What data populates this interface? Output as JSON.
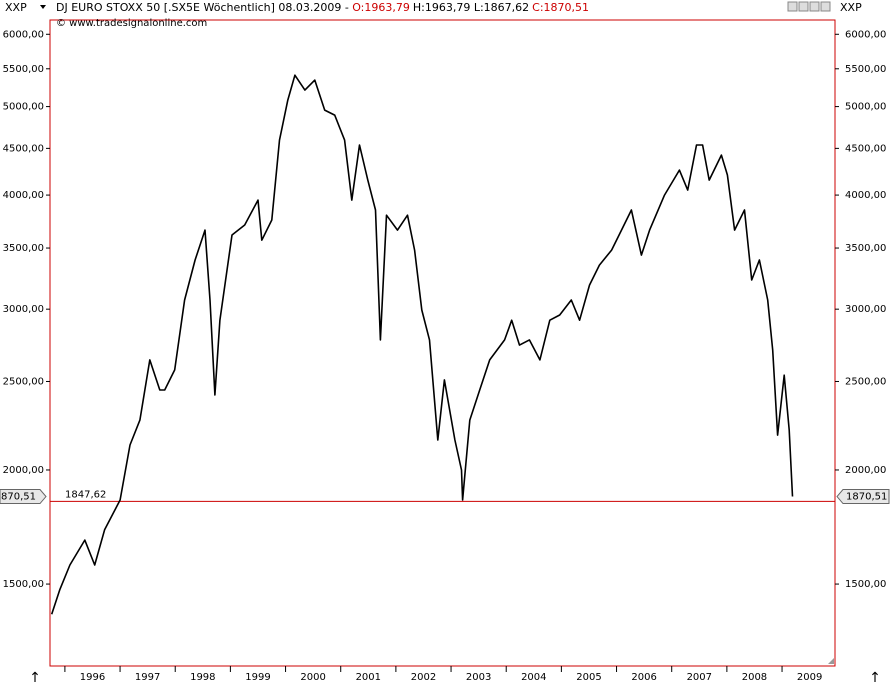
{
  "chart_data": {
    "type": "line",
    "axis_name": "XXP",
    "title": "DJ EURO STOXX 50 [.SX5E  Wöchentlich] 08.03.2009 -",
    "open_label": "O:1963,79",
    "high_low_label": "H:1963,79 L:1867,62",
    "close_label": "C:1870,51",
    "source": "© www.tradesignalonline.com",
    "x": [
      1995.76,
      1995.91,
      1996.09,
      1996.36,
      1996.54,
      1996.72,
      1997.0,
      1997.18,
      1997.36,
      1997.54,
      1997.72,
      1997.81,
      1997.99,
      1998.17,
      1998.36,
      1998.54,
      1998.63,
      1998.72,
      1998.81,
      1999.03,
      1999.26,
      1999.5,
      1999.57,
      1999.75,
      1999.89,
      2000.04,
      2000.17,
      2000.35,
      2000.53,
      2000.71,
      2000.89,
      2001.07,
      2001.2,
      2001.34,
      2001.49,
      2001.63,
      2001.72,
      2001.83,
      2002.03,
      2002.21,
      2002.34,
      2002.47,
      2002.61,
      2002.76,
      2002.88,
      2003.07,
      2003.19,
      2003.21,
      2003.34,
      2003.52,
      2003.7,
      2003.97,
      2004.1,
      2004.24,
      2004.42,
      2004.61,
      2004.79,
      2004.97,
      2005.18,
      2005.33,
      2005.51,
      2005.69,
      2005.91,
      2006.09,
      2006.27,
      2006.45,
      2006.6,
      2006.87,
      2007.14,
      2007.29,
      2007.45,
      2007.56,
      2007.68,
      2007.9,
      2008.01,
      2008.14,
      2008.32,
      2008.45,
      2008.59,
      2008.74,
      2008.83,
      2008.92,
      2009.04,
      2009.13,
      2009.19
    ],
    "values": [
      1390,
      1480,
      1574,
      1676,
      1574,
      1720,
      1854,
      2130,
      2268,
      2640,
      2447,
      2447,
      2574,
      3070,
      3396,
      3662,
      3070,
      2416,
      2918,
      3617,
      3709,
      3950,
      3570,
      3756,
      4595,
      5082,
      5412,
      5212,
      5345,
      4956,
      4894,
      4595,
      3950,
      4538,
      4154,
      3852,
      2776,
      3802,
      3662,
      3802,
      3482,
      2994,
      2776,
      2157,
      2510,
      2157,
      2000,
      1854,
      2268,
      2447,
      2640,
      2776,
      2918,
      2740,
      2776,
      2640,
      2918,
      2956,
      3070,
      2918,
      3188,
      3353,
      3482,
      3662,
      3852,
      3438,
      3662,
      4000,
      4260,
      4051,
      4538,
      4538,
      4154,
      4424,
      4208,
      3662,
      3852,
      3229,
      3396,
      3070,
      2706,
      2184,
      2540,
      2212,
      1870.51
    ],
    "color": "#000000",
    "xlim": [
      1995.73,
      2009.96
    ],
    "xticks": [
      1996,
      1997,
      1998,
      1999,
      2000,
      2001,
      2002,
      2003,
      2004,
      2005,
      2006,
      2007,
      2008,
      2009
    ],
    "ylim": [
      1220,
      6220
    ],
    "yscale": "log",
    "yticks": [
      {
        "value": 1500,
        "label": "1500,00"
      },
      {
        "value": 2000,
        "label": "2000,00"
      },
      {
        "value": 2500,
        "label": "2500,00"
      },
      {
        "value": 3000,
        "label": "3000,00"
      },
      {
        "value": 3500,
        "label": "3500,00"
      },
      {
        "value": 4000,
        "label": "4000,00"
      },
      {
        "value": 4500,
        "label": "4500,00"
      },
      {
        "value": 5000,
        "label": "5000,00"
      },
      {
        "value": 5500,
        "label": "5500,00"
      },
      {
        "value": 6000,
        "label": "6000,00"
      }
    ],
    "reference_line": {
      "value": 1847.62,
      "label": "1847,62",
      "color": "#cc0000"
    },
    "last_price": {
      "value": 1870.51,
      "label": "1870,51"
    }
  }
}
